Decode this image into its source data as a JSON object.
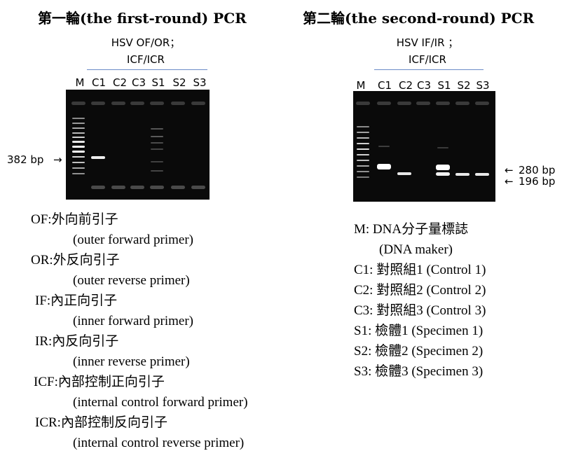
{
  "left": {
    "title": "第一輪(the first-round) PCR",
    "primers_line1": "HSV OF/OR；",
    "primers_line2": "ICF/ICR",
    "lanes": [
      "M",
      "C1",
      "C2",
      "C3",
      "S1",
      "S2",
      "S3"
    ],
    "marker_label": "382 bp"
  },
  "right": {
    "title": "第二輪(the second-round) PCR",
    "primers_line1": "HSV IF/IR ；",
    "primers_line2": "ICF/ICR",
    "lanes": [
      "M",
      "C1",
      "C2",
      "C3",
      "S1",
      "S2",
      "S3"
    ],
    "marker_label_1": "280 bp",
    "marker_label_2": "196 bp"
  },
  "legend_left": [
    {
      "abbr": "OF:外向前引子",
      "desc": "(outer forward primer)"
    },
    {
      "abbr": "OR:外反向引子",
      "desc": "(outer reverse primer)"
    },
    {
      "abbr": "IF:內正向引子",
      "desc": "(inner forward primer)"
    },
    {
      "abbr": "IR:內反向引子",
      "desc": "(inner reverse primer)"
    },
    {
      "abbr": "ICF:內部控制正向引子",
      "desc": "(internal control forward primer)"
    },
    {
      "abbr": "ICR:內部控制反向引子",
      "desc": "(internal control reverse primer)"
    }
  ],
  "legend_right": [
    "M: DNA分子量標誌",
    "(DNA maker)",
    "C1: 對照組1 (Control 1)",
    "C2: 對照組2 (Control 2)",
    "C3: 對照組3 (Control 3)",
    "S1: 檢體1 (Specimen 1)",
    "S2: 檢體2 (Specimen 2)",
    "S3: 檢體3 (Specimen 3)"
  ]
}
